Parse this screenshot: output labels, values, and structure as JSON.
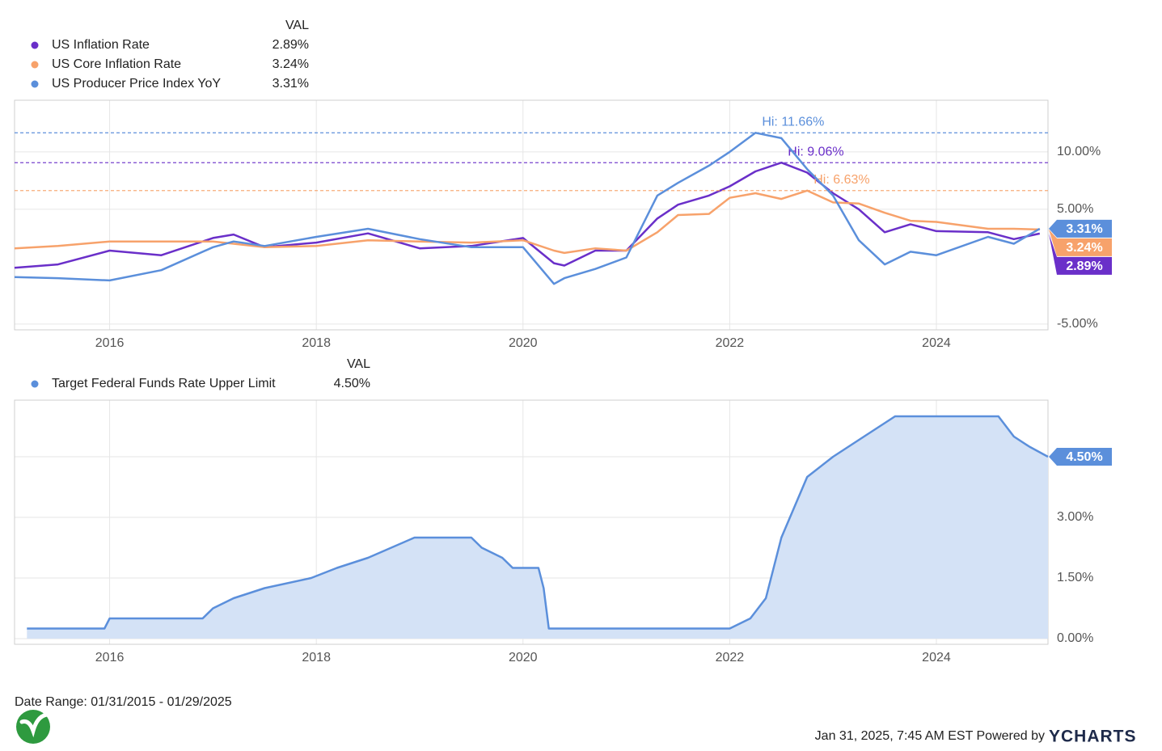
{
  "chart_data": [
    {
      "type": "line",
      "legend_header": "VAL",
      "x": [
        2015.08,
        2015.5,
        2016.0,
        2016.5,
        2017.0,
        2017.2,
        2017.5,
        2018.0,
        2018.5,
        2019.0,
        2019.5,
        2020.0,
        2020.3,
        2020.4,
        2020.7,
        2021.0,
        2021.3,
        2021.5,
        2021.8,
        2022.0,
        2022.25,
        2022.5,
        2022.75,
        2023.0,
        2023.25,
        2023.5,
        2023.75,
        2024.0,
        2024.5,
        2024.75,
        2025.0
      ],
      "xlim": [
        2015.08,
        2025.08
      ],
      "xticks": [
        2016,
        2018,
        2020,
        2022,
        2024
      ],
      "ylim": [
        -5.5,
        14.5
      ],
      "yticks": [
        {
          "value": -5,
          "label": "-5.00%"
        },
        {
          "value": 5,
          "label": "5.00%"
        },
        {
          "value": 10,
          "label": "10.00%"
        }
      ],
      "grid": true,
      "series": [
        {
          "name": "US Inflation Rate",
          "color": "#6a2fc9",
          "last_label": "2.89%",
          "hi_label": "Hi: 9.06%",
          "values": [
            -0.1,
            0.2,
            1.4,
            1.0,
            2.5,
            2.8,
            1.7,
            2.1,
            2.9,
            1.6,
            1.8,
            2.5,
            0.3,
            0.1,
            1.4,
            1.4,
            4.2,
            5.4,
            6.2,
            7.0,
            8.3,
            9.06,
            8.2,
            6.4,
            5.0,
            3.0,
            3.7,
            3.1,
            3.0,
            2.4,
            2.89
          ]
        },
        {
          "name": "US Core Inflation Rate",
          "color": "#f7a26b",
          "last_label": "3.24%",
          "hi_label": "Hi: 6.63%",
          "values": [
            1.6,
            1.8,
            2.2,
            2.2,
            2.2,
            2.0,
            1.7,
            1.8,
            2.3,
            2.2,
            2.1,
            2.3,
            1.4,
            1.2,
            1.6,
            1.4,
            3.0,
            4.5,
            4.6,
            6.0,
            6.4,
            5.9,
            6.63,
            5.6,
            5.5,
            4.7,
            4.0,
            3.9,
            3.3,
            3.3,
            3.24
          ]
        },
        {
          "name": "US Producer Price Index YoY",
          "color": "#5b8fdb",
          "last_label": "3.31%",
          "hi_label": "Hi: 11.66%",
          "values": [
            -0.9,
            -1.0,
            -1.2,
            -0.3,
            1.7,
            2.2,
            1.8,
            2.6,
            3.3,
            2.4,
            1.7,
            1.7,
            -1.5,
            -1.0,
            -0.2,
            0.8,
            6.2,
            7.3,
            8.8,
            10.0,
            11.66,
            11.2,
            8.5,
            6.2,
            2.3,
            0.2,
            1.3,
            1.0,
            2.6,
            2.0,
            3.31
          ]
        }
      ]
    },
    {
      "type": "area",
      "legend_header": "VAL",
      "x": [
        2015.2,
        2015.95,
        2016.0,
        2016.9,
        2017.0,
        2017.2,
        2017.5,
        2017.95,
        2018.2,
        2018.5,
        2018.95,
        2019.5,
        2019.6,
        2019.8,
        2019.9,
        2020.15,
        2020.2,
        2020.25,
        2022.0,
        2022.2,
        2022.35,
        2022.5,
        2022.75,
        2023.0,
        2023.3,
        2023.6,
        2024.6,
        2024.75,
        2024.9,
        2025.08
      ],
      "xlim": [
        2015.08,
        2025.08
      ],
      "xticks": [
        2016,
        2018,
        2020,
        2022,
        2024
      ],
      "ylim": [
        -0.14,
        5.9
      ],
      "yticks": [
        {
          "value": 0,
          "label": "0.00%"
        },
        {
          "value": 1.5,
          "label": "1.50%"
        },
        {
          "value": 3,
          "label": "3.00%"
        },
        {
          "value": 4.5,
          "label": "4.50%"
        }
      ],
      "grid": true,
      "series": [
        {
          "name": "Target Federal Funds Rate Upper Limit",
          "color": "#5b8fdb",
          "fill": "#d4e2f6",
          "last_label": "4.50%",
          "values": [
            0.25,
            0.25,
            0.5,
            0.5,
            0.75,
            1.0,
            1.25,
            1.5,
            1.75,
            2.0,
            2.5,
            2.5,
            2.25,
            2.0,
            1.75,
            1.75,
            1.25,
            0.25,
            0.25,
            0.5,
            1.0,
            2.5,
            4.0,
            4.5,
            5.0,
            5.5,
            5.5,
            5.0,
            4.75,
            4.5
          ]
        }
      ]
    }
  ],
  "footer": {
    "date_range": "Date Range: 01/31/2015 - 01/29/2025",
    "timestamp": "Jan 31, 2025, 7:45 AM EST Powered by",
    "brand": "YCHARTS"
  }
}
